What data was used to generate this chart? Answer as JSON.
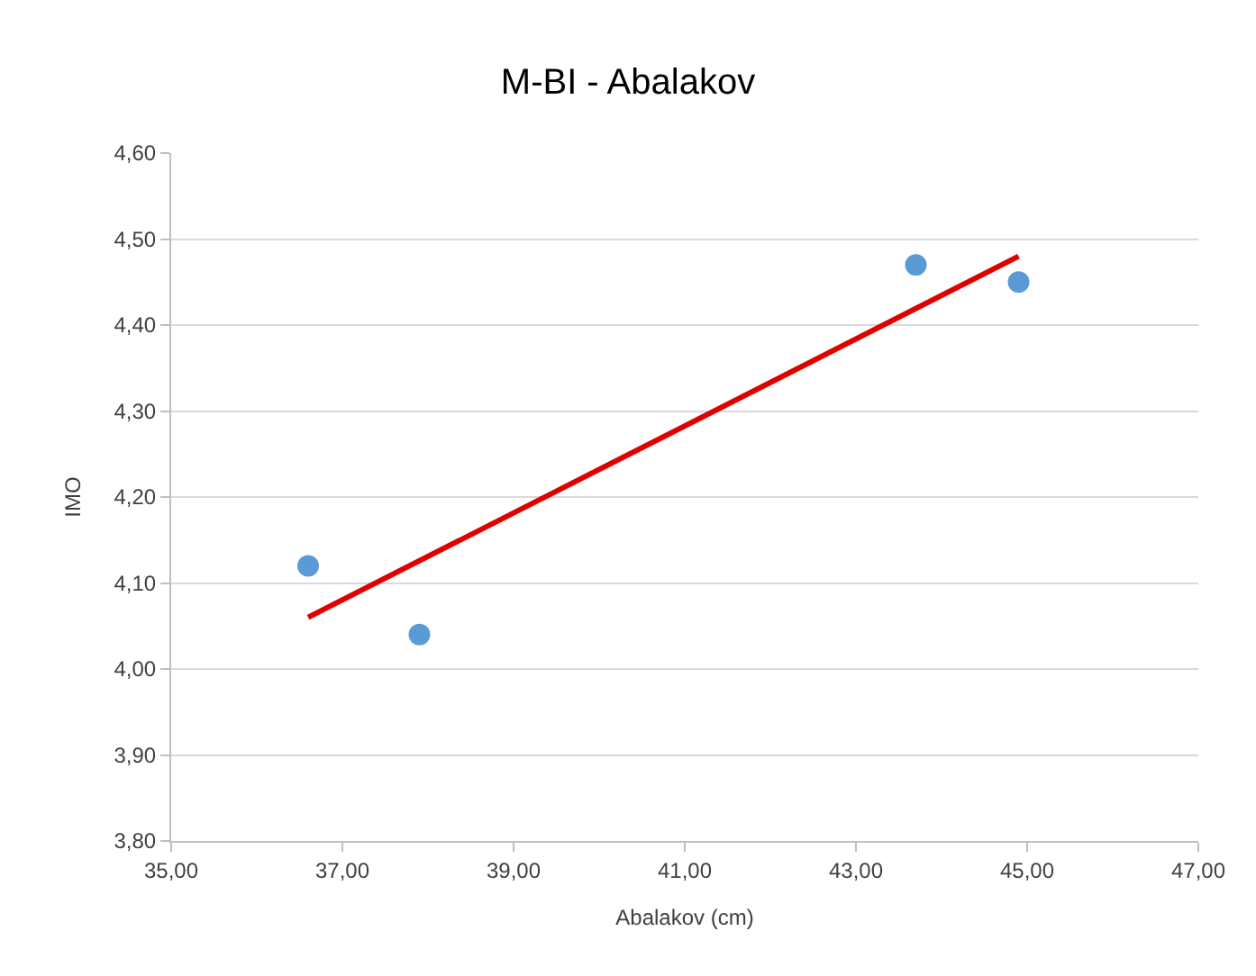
{
  "chart_data": {
    "type": "scatter",
    "title": "M-BI - Abalakov",
    "xlabel": "Abalakov (cm)",
    "ylabel": "IMO",
    "xlim": [
      35,
      47
    ],
    "ylim": [
      3.8,
      4.6
    ],
    "xticks": [
      {
        "value": 35,
        "label": "35,00"
      },
      {
        "value": 37,
        "label": "37,00"
      },
      {
        "value": 39,
        "label": "39,00"
      },
      {
        "value": 41,
        "label": "41,00"
      },
      {
        "value": 43,
        "label": "43,00"
      },
      {
        "value": 45,
        "label": "45,00"
      },
      {
        "value": 47,
        "label": "47,00"
      }
    ],
    "yticks": [
      {
        "value": 3.8,
        "label": "3,80"
      },
      {
        "value": 3.9,
        "label": "3,90"
      },
      {
        "value": 4.0,
        "label": "4,00"
      },
      {
        "value": 4.1,
        "label": "4,10"
      },
      {
        "value": 4.2,
        "label": "4,20"
      },
      {
        "value": 4.3,
        "label": "4,30"
      },
      {
        "value": 4.4,
        "label": "4,40"
      },
      {
        "value": 4.5,
        "label": "4,50"
      },
      {
        "value": 4.6,
        "label": "4,60"
      }
    ],
    "grid": "y",
    "marker": "circle",
    "series": [
      {
        "color": "#5b9bd5",
        "x": [
          36.6,
          37.9,
          43.7,
          44.9
        ],
        "values": [
          4.12,
          4.04,
          4.47,
          4.45
        ]
      },
      {
        "type": "line",
        "color": "#e00000",
        "line_style": "solid",
        "marker": "none",
        "x": [
          36.6,
          44.9
        ],
        "values": [
          4.06,
          4.48
        ]
      }
    ]
  }
}
